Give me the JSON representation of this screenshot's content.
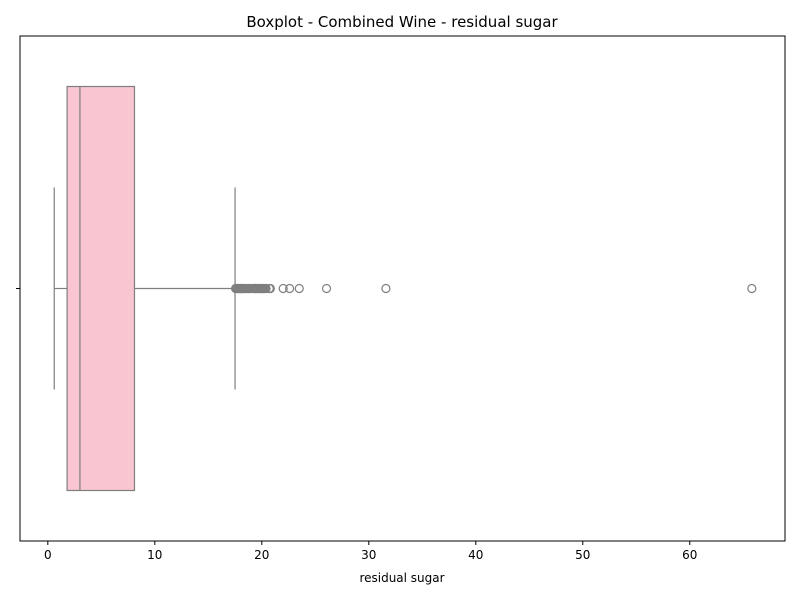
{
  "chart_data": {
    "type": "boxplot",
    "orientation": "horizontal",
    "title": "Boxplot - Combined Wine - residual sugar",
    "xlabel": "residual sugar",
    "ylabel": "",
    "xlim": [
      -2.6,
      68.9
    ],
    "xticks": [
      0,
      10,
      20,
      30,
      40,
      50,
      60
    ],
    "xtick_labels": [
      "0",
      "10",
      "20",
      "30",
      "40",
      "50",
      "60"
    ],
    "grid": false,
    "box_color": "#f9c5d0",
    "line_color": "#7f7f7f",
    "series": [
      {
        "whisker_low": 0.6,
        "q1": 1.8,
        "median": 3.0,
        "q3": 8.1,
        "whisker_high": 17.5,
        "outliers": [
          17.55,
          17.6,
          17.7,
          17.75,
          17.8,
          17.85,
          17.9,
          17.95,
          18.0,
          18.05,
          18.1,
          18.15,
          18.2,
          18.25,
          18.35,
          18.4,
          18.5,
          18.6,
          18.75,
          18.8,
          18.9,
          19.1,
          19.25,
          19.3,
          19.35,
          19.4,
          19.45,
          19.5,
          19.6,
          19.7,
          19.8,
          19.9,
          19.95,
          20.0,
          20.1,
          20.15,
          20.2,
          20.3,
          20.4,
          20.7,
          20.8,
          22.0,
          22.6,
          23.5,
          26.05,
          31.6,
          65.8
        ]
      }
    ]
  }
}
